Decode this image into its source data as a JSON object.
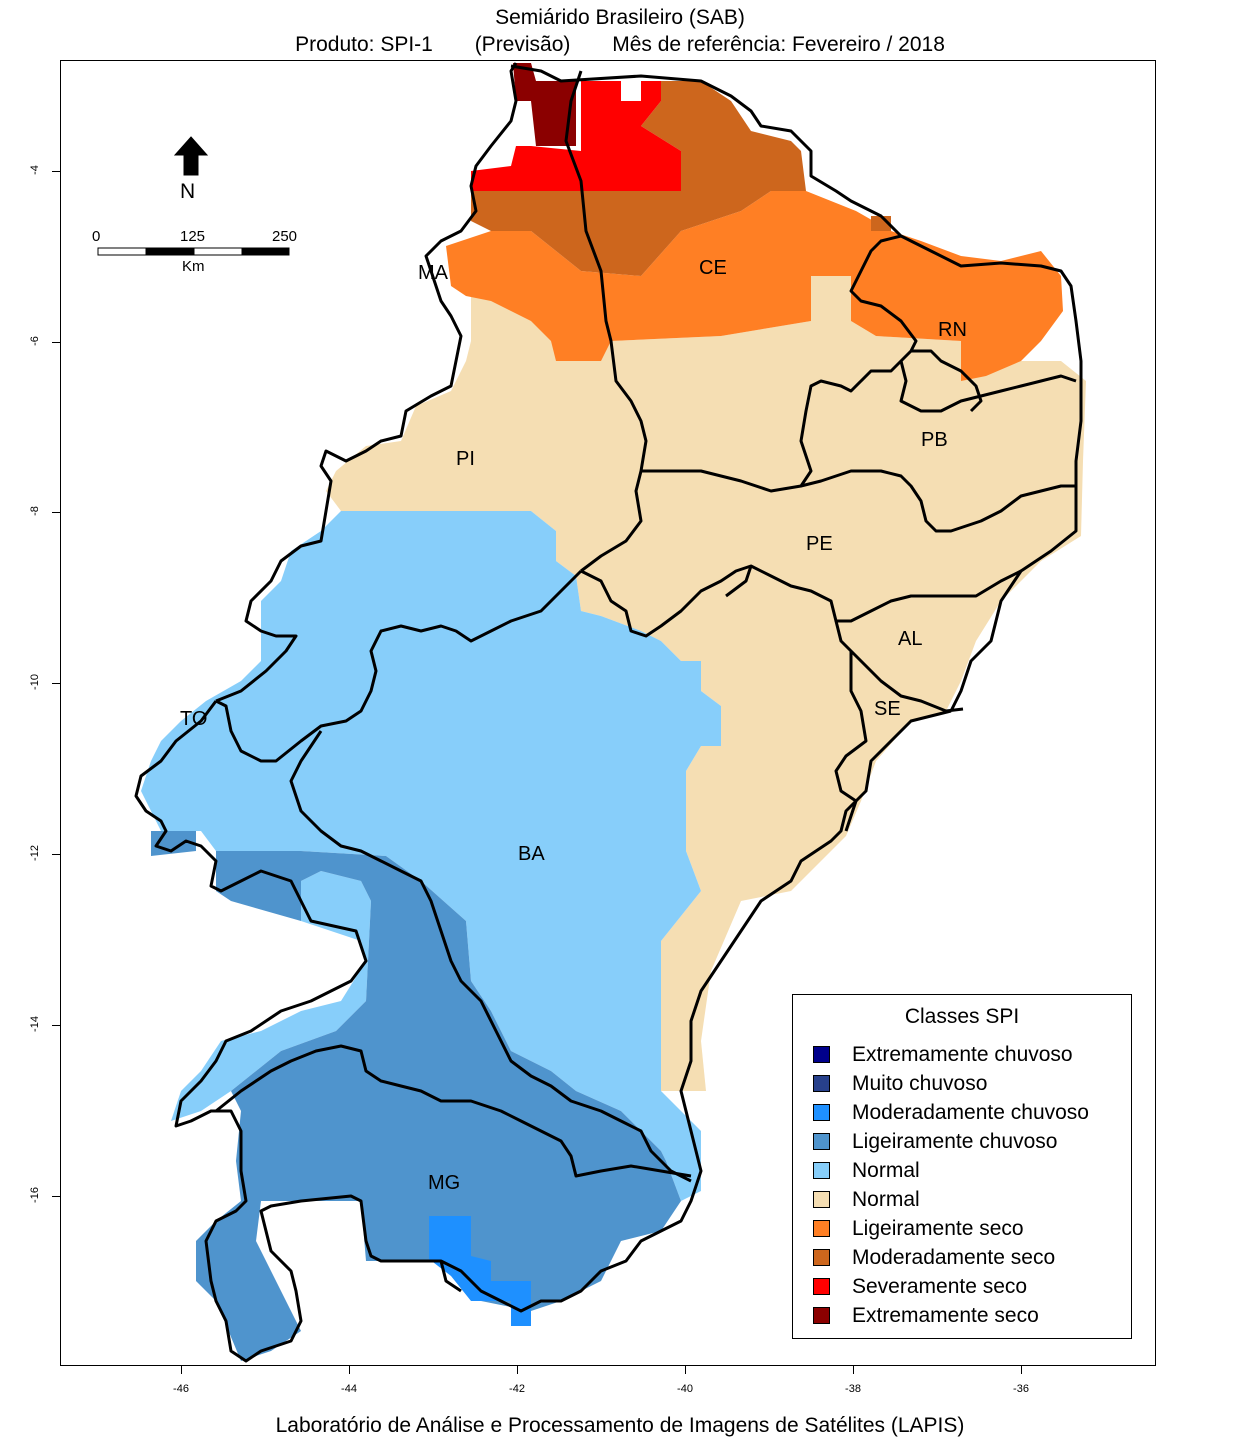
{
  "title": {
    "line1": "Semiárido Brasileiro (SAB)",
    "produto": "Produto: SPI-1",
    "previsao": "(Previsão)",
    "mes": "Mês de referência:  Fevereiro / 2018"
  },
  "footer": "Laboratório de Análise e Processamento de Imagens de Satélites (LAPIS)",
  "axes": {
    "y_ticks": [
      "-4",
      "-6",
      "-8",
      "-10",
      "-12",
      "-14",
      "-16"
    ],
    "x_ticks": [
      "-46",
      "-44",
      "-42",
      "-40",
      "-38",
      "-36"
    ]
  },
  "north_arrow": {
    "label": "N",
    "icon": "north-arrow-icon"
  },
  "scale_bar": {
    "labels": [
      "0",
      "125",
      "250"
    ],
    "unit": "Km"
  },
  "states": [
    "MA",
    "CE",
    "RN",
    "PI",
    "PB",
    "PE",
    "AL",
    "SE",
    "TO",
    "BA",
    "MG"
  ],
  "legend": {
    "title": "Classes SPI",
    "items": [
      {
        "label": "Extremamente chuvoso",
        "color": "#00008b"
      },
      {
        "label": "Muito chuvoso",
        "color": "#27408b"
      },
      {
        "label": "Moderadamente chuvoso",
        "color": "#1e90ff"
      },
      {
        "label": "Ligeiramente chuvoso",
        "color": "#4f94cd"
      },
      {
        "label": "Normal",
        "color": "#87cefa"
      },
      {
        "label": "Normal",
        "color": "#f5deb3"
      },
      {
        "label": "Ligeiramente seco",
        "color": "#ff7f24"
      },
      {
        "label": "Moderadamente seco",
        "color": "#cd661d"
      },
      {
        "label": "Severamente seco",
        "color": "#ff0000"
      },
      {
        "label": "Extremamente seco",
        "color": "#8b0000"
      }
    ]
  }
}
